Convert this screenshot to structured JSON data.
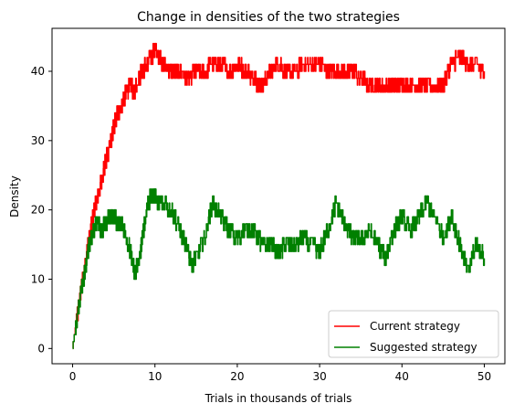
{
  "chart_data": {
    "type": "line",
    "title": "Change in densities of the two strategies",
    "xlabel": "Trials in thousands of trials",
    "ylabel": "Density",
    "xlim": [
      -2.5,
      52.5
    ],
    "ylim": [
      -2.2,
      46.2
    ],
    "xticks": [
      0,
      10,
      20,
      30,
      40,
      50
    ],
    "yticks": [
      0,
      10,
      20,
      30,
      40
    ],
    "grid": false,
    "legend_position": "lower-right",
    "series": [
      {
        "name": "Current strategy",
        "color": "#ff0000",
        "x": [
          0,
          0.5,
          1,
          1.5,
          2,
          2.5,
          3,
          3.5,
          4,
          4.5,
          5,
          5.5,
          6,
          6.5,
          7,
          7.5,
          8,
          8.5,
          9,
          9.5,
          10,
          10.5,
          11,
          12,
          13,
          14,
          15,
          16,
          17,
          18,
          19,
          20,
          21,
          22,
          22.5,
          23,
          24,
          25,
          26,
          27,
          28,
          29,
          30,
          31,
          32,
          33,
          34,
          35,
          36,
          37,
          38,
          39,
          40,
          41,
          42,
          43,
          44,
          45,
          46,
          47,
          48,
          49,
          50
        ],
        "y": [
          0,
          4,
          8,
          12,
          16,
          19,
          22,
          24,
          27,
          29,
          32,
          34,
          35,
          37,
          38,
          37,
          39,
          40,
          41,
          42,
          43,
          42,
          41,
          40,
          40,
          39,
          40,
          40,
          41,
          41,
          40,
          41,
          40,
          39,
          38,
          38,
          40,
          41,
          40,
          40,
          41,
          41,
          41,
          40,
          40,
          40,
          40,
          39,
          38,
          38,
          38,
          38,
          38,
          38,
          38,
          38,
          38,
          38,
          41,
          42,
          41,
          41,
          40
        ]
      },
      {
        "name": "Suggested strategy",
        "color": "#008000",
        "x": [
          0,
          0.5,
          1,
          1.5,
          2,
          2.5,
          3,
          3.5,
          4,
          4.5,
          5,
          5.5,
          6,
          6.5,
          7,
          7.5,
          8,
          8.5,
          9,
          9.5,
          10,
          10.5,
          11,
          12,
          13,
          14,
          14.5,
          15,
          16,
          17,
          18,
          19,
          20,
          21,
          22,
          23,
          24,
          25,
          26,
          27,
          28,
          29,
          30,
          31,
          32,
          33,
          34,
          35,
          36,
          37,
          38,
          39,
          40,
          41,
          42,
          43,
          44,
          45,
          46,
          47,
          48,
          49,
          50
        ],
        "y": [
          0,
          4,
          8,
          11,
          15,
          17,
          18,
          17,
          18,
          19,
          19,
          18,
          18,
          16,
          14,
          11,
          12,
          16,
          20,
          22,
          22,
          21,
          21,
          20,
          17,
          14,
          12,
          13,
          16,
          21,
          19,
          17,
          16,
          17,
          17,
          15,
          15,
          14,
          15,
          15,
          16,
          15,
          14,
          17,
          21,
          18,
          16,
          16,
          17,
          15,
          13,
          17,
          19,
          17,
          19,
          21,
          19,
          16,
          19,
          15,
          11,
          15,
          13
        ]
      }
    ]
  }
}
